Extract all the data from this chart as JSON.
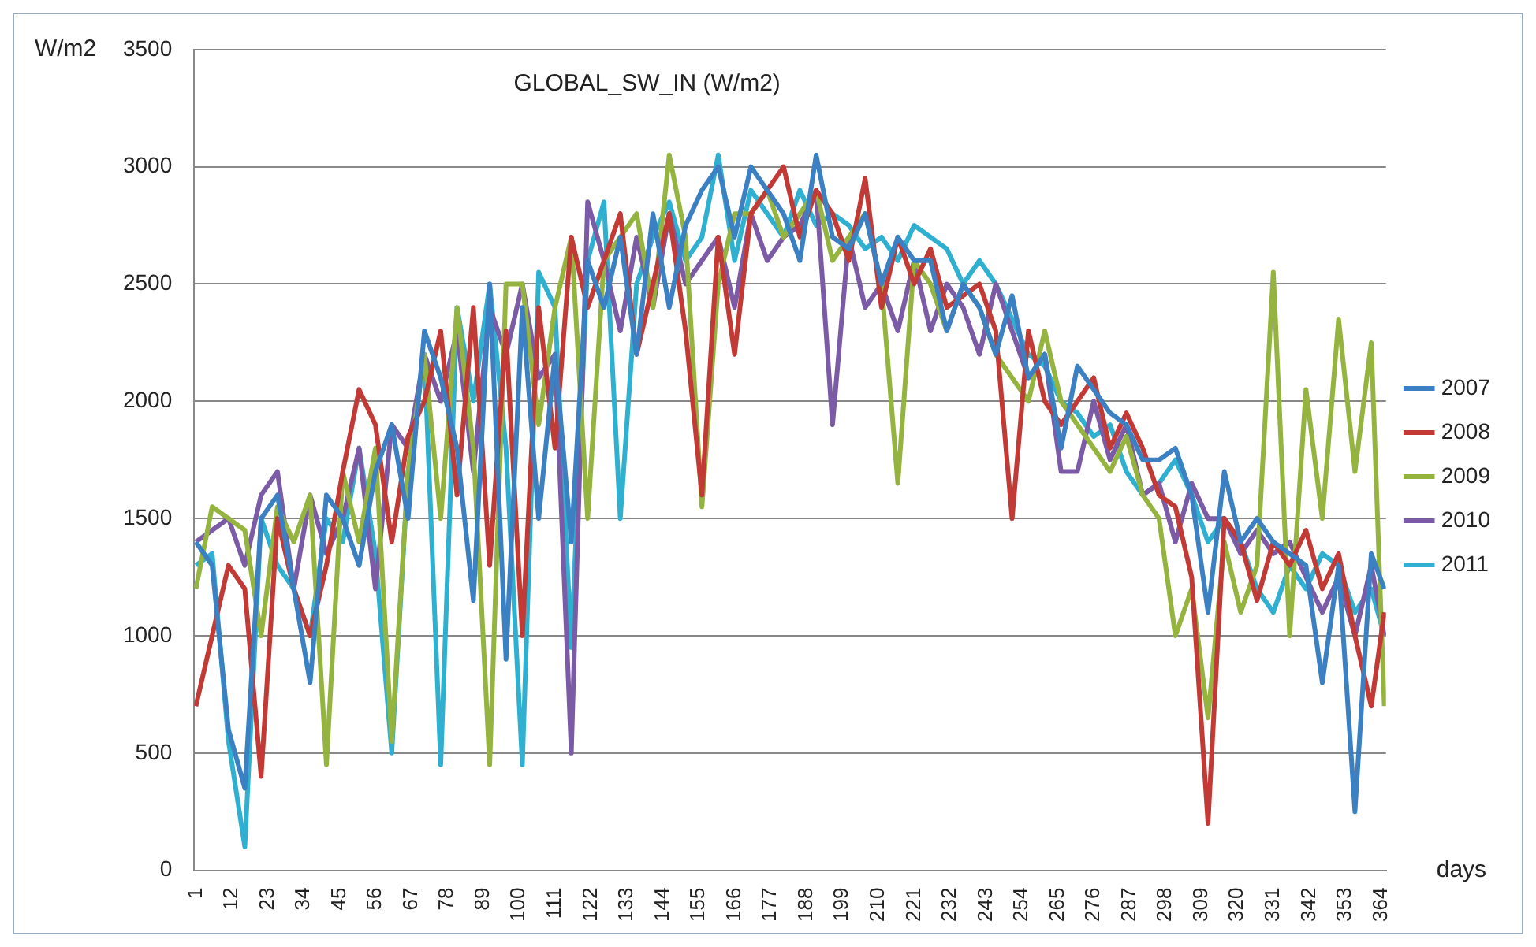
{
  "chart_data": {
    "type": "line",
    "title": "GLOBAL_SW_IN (W/m2)",
    "ylabel": "W/m2",
    "xlabel": "days",
    "x": [
      1,
      6,
      11,
      16,
      21,
      26,
      31,
      36,
      41,
      46,
      51,
      56,
      61,
      66,
      71,
      76,
      81,
      86,
      91,
      96,
      101,
      106,
      111,
      116,
      121,
      126,
      131,
      136,
      141,
      146,
      151,
      156,
      161,
      166,
      171,
      176,
      181,
      186,
      191,
      196,
      201,
      206,
      211,
      216,
      221,
      226,
      231,
      236,
      241,
      246,
      251,
      256,
      261,
      266,
      271,
      276,
      281,
      286,
      291,
      296,
      301,
      306,
      311,
      316,
      321,
      326,
      331,
      336,
      341,
      346,
      351,
      356,
      361,
      365
    ],
    "series": [
      {
        "name": "2007",
        "color": "#3a80c3",
        "values": [
          1400,
          1300,
          600,
          350,
          1500,
          1600,
          1200,
          800,
          1600,
          1500,
          1300,
          1700,
          1900,
          1500,
          2300,
          2100,
          1800,
          1150,
          2500,
          900,
          2400,
          1500,
          2200,
          1400,
          2600,
          2400,
          2700,
          2200,
          2800,
          2400,
          2750,
          2900,
          3000,
          2700,
          3000,
          2900,
          2800,
          2600,
          3050,
          2700,
          2650,
          2800,
          2500,
          2700,
          2600,
          2600,
          2300,
          2500,
          2400,
          2200,
          2450,
          2100,
          2200,
          1800,
          2150,
          2050,
          1950,
          1900,
          1750,
          1750,
          1800,
          1600,
          1100,
          1700,
          1400,
          1500,
          1400,
          1350,
          1300,
          800,
          1300,
          250,
          1350,
          1200
        ]
      },
      {
        "name": "2008",
        "color": "#c23a35",
        "values": [
          700,
          1000,
          1300,
          1200,
          400,
          1500,
          1200,
          1000,
          1300,
          1700,
          2050,
          1900,
          1400,
          1850,
          2000,
          2300,
          1600,
          2400,
          1300,
          2300,
          1000,
          2400,
          1800,
          2700,
          2400,
          2600,
          2800,
          2200,
          2500,
          2800,
          2300,
          1600,
          2700,
          2200,
          2800,
          2900,
          3000,
          2700,
          2900,
          2800,
          2600,
          2950,
          2400,
          2700,
          2500,
          2650,
          2400,
          2450,
          2500,
          2300,
          1500,
          2300,
          2000,
          1900,
          2000,
          2100,
          1800,
          1950,
          1800,
          1600,
          1550,
          1250,
          200,
          1500,
          1400,
          1150,
          1400,
          1300,
          1450,
          1200,
          1350,
          1000,
          700,
          1100
        ]
      },
      {
        "name": "2009",
        "color": "#94b43f",
        "values": [
          1200,
          1550,
          1500,
          1450,
          1000,
          1550,
          1400,
          1600,
          450,
          1700,
          1400,
          1800,
          550,
          1700,
          2200,
          1500,
          2400,
          1800,
          450,
          2500,
          2500,
          1900,
          2400,
          2700,
          1500,
          2600,
          2700,
          2800,
          2400,
          3050,
          2700,
          1550,
          2500,
          2800,
          2800,
          2900,
          2700,
          2800,
          2900,
          2600,
          2700,
          2800,
          2500,
          1650,
          2600,
          2500,
          2300,
          2500,
          2400,
          2200,
          2100,
          2000,
          2300,
          2000,
          1900,
          1800,
          1700,
          1850,
          1600,
          1500,
          1000,
          1200,
          650,
          1400,
          1100,
          1300,
          2550,
          1000,
          2050,
          1500,
          2350,
          1700,
          2250,
          700
        ]
      },
      {
        "name": "2010",
        "color": "#7b5aa6",
        "values": [
          1400,
          1450,
          1500,
          1300,
          1600,
          1700,
          1200,
          1600,
          1350,
          1500,
          1800,
          1200,
          1900,
          1800,
          2200,
          2000,
          2300,
          1700,
          2400,
          2200,
          2500,
          2100,
          2200,
          500,
          2850,
          2600,
          2300,
          2700,
          2400,
          2800,
          2500,
          2600,
          2700,
          2400,
          2800,
          2600,
          2700,
          2750,
          2900,
          1900,
          2700,
          2400,
          2500,
          2300,
          2600,
          2300,
          2500,
          2400,
          2200,
          2500,
          2300,
          2100,
          2200,
          1700,
          1700,
          2000,
          1750,
          1900,
          1600,
          1650,
          1400,
          1650,
          1500,
          1500,
          1350,
          1450,
          1350,
          1400,
          1250,
          1100,
          1250,
          1000,
          1300,
          1000
        ]
      },
      {
        "name": "2011",
        "color": "#2fb0d0",
        "values": [
          1300,
          1350,
          550,
          100,
          1500,
          1300,
          1200,
          1000,
          1500,
          1400,
          1800,
          1350,
          500,
          1700,
          2200,
          450,
          2400,
          2000,
          2500,
          1800,
          450,
          2550,
          2400,
          950,
          2600,
          2850,
          1500,
          2500,
          2700,
          2850,
          2600,
          2700,
          3050,
          2600,
          2900,
          2800,
          2700,
          2900,
          2750,
          2800,
          2750,
          2650,
          2700,
          2600,
          2750,
          2700,
          2650,
          2500,
          2600,
          2500,
          2350,
          2200,
          2150,
          2000,
          1950,
          1850,
          1900,
          1700,
          1600,
          1650,
          1750,
          1600,
          1400,
          1500,
          1400,
          1200,
          1100,
          1300,
          1200,
          1350,
          1300,
          1100,
          1200,
          1000
        ]
      }
    ],
    "xlim": [
      0.5,
      365.5
    ],
    "xticks": [
      1,
      12,
      23,
      34,
      45,
      56,
      67,
      78,
      89,
      100,
      111,
      122,
      133,
      144,
      155,
      166,
      177,
      188,
      199,
      210,
      221,
      232,
      243,
      254,
      265,
      276,
      287,
      298,
      309,
      320,
      331,
      342,
      353,
      364
    ],
    "ylim": [
      0,
      3500
    ],
    "yticks": [
      0,
      500,
      1000,
      1500,
      2000,
      2500,
      3000,
      3500
    ],
    "grid": "y",
    "legend": "right",
    "marker": "none",
    "line_style": "solid"
  }
}
